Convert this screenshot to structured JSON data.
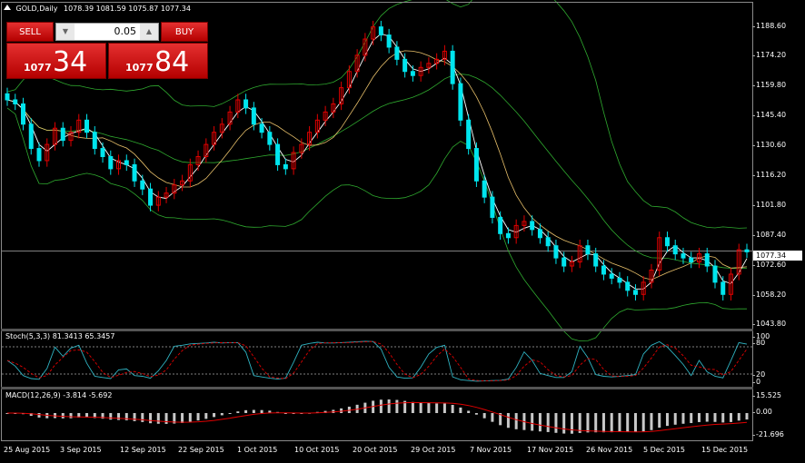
{
  "header": {
    "symbol": "GOLD,Daily",
    "ohlc": "1078.39 1081.59 1075.87 1077.34"
  },
  "trade_panel": {
    "sell_label": "SELL",
    "buy_label": "BUY",
    "lot_value": "0.05",
    "sell_price_small": "1077",
    "sell_price_big": "34",
    "buy_price_small": "1077",
    "buy_price_big": "84"
  },
  "price_axis": [
    "1188.60",
    "1174.20",
    "1159.80",
    "1145.40",
    "1130.60",
    "1116.20",
    "1101.80",
    "1087.40",
    "1072.60",
    "1058.20",
    "1043.80"
  ],
  "current_price": "1077.34",
  "stoch": {
    "label": "Stoch(5,3,3) 81.3413 65.3457",
    "axis": [
      "100",
      "80",
      "20",
      "0"
    ]
  },
  "macd": {
    "label": "MACD(12,26,9) -3.814 -5.692",
    "axis": [
      "15.525",
      "0.00",
      "-21.696"
    ]
  },
  "dates": [
    "25 Aug 2015",
    "3 Sep 2015",
    "12 Sep 2015",
    "22 Sep 2015",
    "1 Oct 2015",
    "10 Oct 2015",
    "20 Oct 2015",
    "29 Oct 2015",
    "7 Nov 2015",
    "17 Nov 2015",
    "26 Nov 2015",
    "5 Dec 2015",
    "15 Dec 2015"
  ],
  "colors": {
    "bull": "#00e5ee",
    "bear": "#e00000",
    "band": "#2faa2f",
    "ma_fast": "#ffffff",
    "ma_slow": "#e8c06a"
  },
  "chart_data": {
    "type": "candlestick",
    "closes": [
      1152,
      1150,
      1140,
      1128,
      1122,
      1130,
      1138,
      1132,
      1136,
      1142,
      1136,
      1128,
      1124,
      1118,
      1122,
      1120,
      1112,
      1108,
      1100,
      1104,
      1106,
      1110,
      1112,
      1120,
      1124,
      1130,
      1136,
      1140,
      1146,
      1152,
      1148,
      1140,
      1136,
      1130,
      1120,
      1118,
      1126,
      1130,
      1136,
      1142,
      1146,
      1150,
      1158,
      1166,
      1174,
      1182,
      1188,
      1184,
      1178,
      1172,
      1166,
      1164,
      1168,
      1170,
      1172,
      1176,
      1160,
      1142,
      1128,
      1112,
      1104,
      1094,
      1086,
      1084,
      1090,
      1092,
      1088,
      1084,
      1080,
      1074,
      1070,
      1072,
      1080,
      1076,
      1070,
      1066,
      1064,
      1062,
      1058,
      1056,
      1062,
      1068,
      1084,
      1080,
      1076,
      1074,
      1072,
      1076,
      1070,
      1062,
      1056,
      1066,
      1078,
      1077
    ]
  }
}
